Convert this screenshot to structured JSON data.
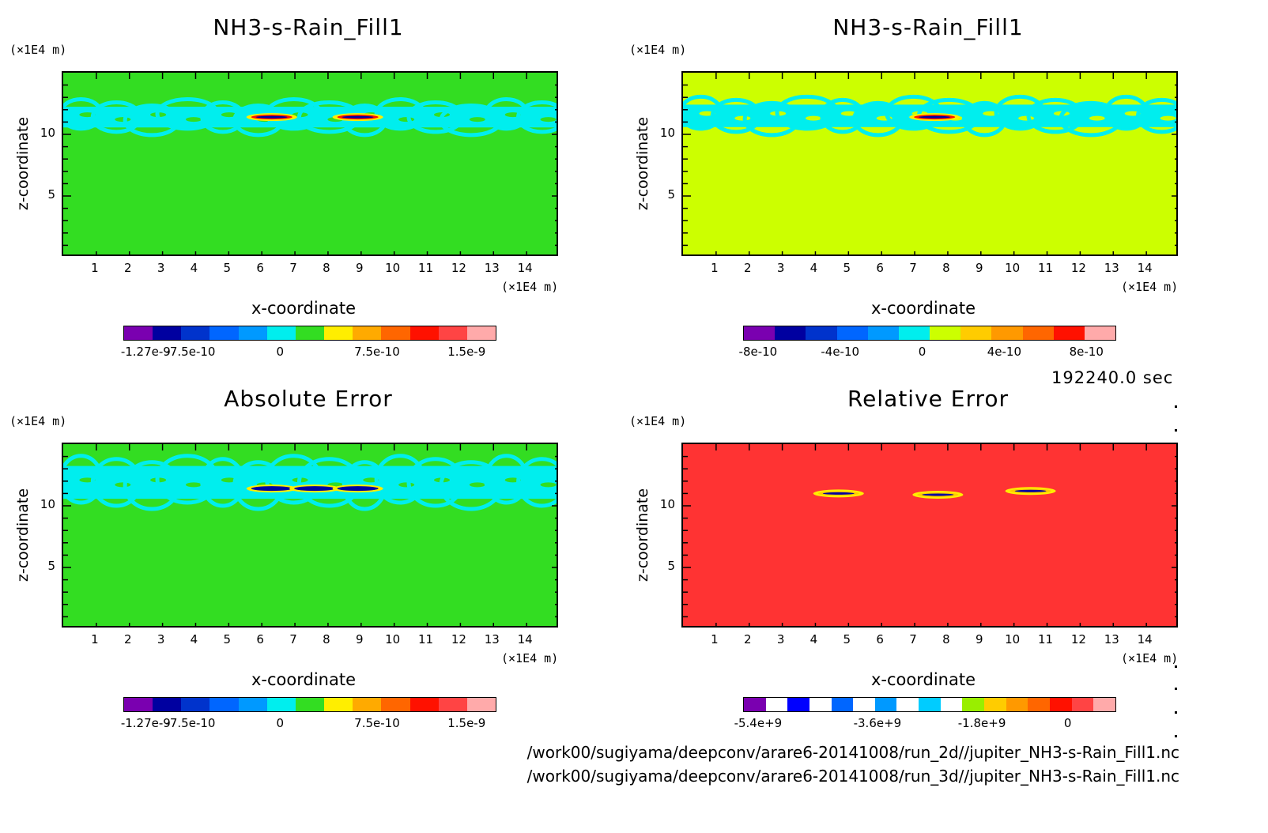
{
  "time_label": "192240.0 sec",
  "file_paths": [
    "/work00/sugiyama/deepconv/arare6-20141008/run_2d//jupiter_NH3-s-Rain_Fill1.nc",
    "/work00/sugiyama/deepconv/arare6-20141008/run_3d//jupiter_NH3-s-Rain_Fill1.nc"
  ],
  "axis_unit": "(×1E4 m)",
  "xlabel": "x-coordinate",
  "ylabel": "z-coordinate",
  "x_ticks": [
    "1",
    "2",
    "3",
    "4",
    "5",
    "6",
    "7",
    "8",
    "9",
    "10",
    "11",
    "12",
    "13",
    "14"
  ],
  "y_ticks": [
    "10",
    "5"
  ],
  "chart_data": [
    {
      "type": "heatmap",
      "title": "NH3-s-Rain_Fill1",
      "xlabel": "x-coordinate",
      "ylabel": "z-coordinate",
      "xlim": [
        0,
        15
      ],
      "ylim": [
        0,
        15
      ],
      "background": "#33dd22",
      "colorbar_colors": [
        "#7a00b0",
        "#0000a0",
        "#0033cc",
        "#0066ff",
        "#0099ff",
        "#00eeee",
        "#33dd22",
        "#ffee00",
        "#ffaa00",
        "#ff6600",
        "#ff1100",
        "#ff4444",
        "#ffaaaa"
      ],
      "colorbar_labels": [
        "-1.27e-9",
        "-7.5e-10",
        "0",
        "7.5e-10",
        "1.5e-9"
      ],
      "features": [
        {
          "type": "band",
          "zmin": 10.2,
          "zmax": 12.6,
          "color": "#00eeee"
        },
        {
          "type": "blob",
          "x": 6.3,
          "z": 11.4,
          "color": "#ff1100"
        },
        {
          "type": "blob",
          "x": 8.9,
          "z": 11.4,
          "color": "#ff1100"
        }
      ]
    },
    {
      "type": "heatmap",
      "title": "NH3-s-Rain_Fill1",
      "xlabel": "x-coordinate",
      "ylabel": "z-coordinate",
      "xlim": [
        0,
        15
      ],
      "ylim": [
        0,
        15
      ],
      "background": "#ccff00",
      "colorbar_colors": [
        "#7a00b0",
        "#0000a0",
        "#0033cc",
        "#0066ff",
        "#0099ff",
        "#00eeee",
        "#ccff00",
        "#ffcc00",
        "#ff9900",
        "#ff6600",
        "#ff1100",
        "#ffaaaa"
      ],
      "colorbar_labels": [
        "-8e-10",
        "-4e-10",
        "0",
        "4e-10",
        "8e-10"
      ],
      "features": [
        {
          "type": "band",
          "zmin": 10.2,
          "zmax": 12.8,
          "color": "#00eeee"
        },
        {
          "type": "blob",
          "x": 7.6,
          "z": 11.4,
          "color": "#ff1100"
        }
      ]
    },
    {
      "type": "heatmap",
      "title": "Absolute Error",
      "xlabel": "x-coordinate",
      "ylabel": "z-coordinate",
      "xlim": [
        0,
        15
      ],
      "ylim": [
        0,
        15
      ],
      "background": "#33dd22",
      "colorbar_colors": [
        "#7a00b0",
        "#0000a0",
        "#0033cc",
        "#0066ff",
        "#0099ff",
        "#00eeee",
        "#33dd22",
        "#ffee00",
        "#ffaa00",
        "#ff6600",
        "#ff1100",
        "#ff4444",
        "#ffaaaa"
      ],
      "colorbar_labels": [
        "-1.27e-9",
        "-7.5e-10",
        "0",
        "7.5e-10",
        "1.5e-9"
      ],
      "features": [
        {
          "type": "band",
          "zmin": 10.0,
          "zmax": 13.8,
          "color": "#00eeee"
        },
        {
          "type": "blob",
          "x": 6.3,
          "z": 11.4,
          "color": "#0000a0"
        },
        {
          "type": "blob",
          "x": 7.6,
          "z": 11.4,
          "color": "#0000a0"
        },
        {
          "type": "blob",
          "x": 8.9,
          "z": 11.4,
          "color": "#0000a0"
        }
      ]
    },
    {
      "type": "heatmap",
      "title": "Relative Error",
      "xlabel": "x-coordinate",
      "ylabel": "z-coordinate",
      "xlim": [
        0,
        15
      ],
      "ylim": [
        0,
        15
      ],
      "background": "#ff3333",
      "colorbar_colors": [
        "#7a00b0",
        "#ffffff",
        "#0000ff",
        "#ffffff",
        "#0066ff",
        "#ffffff",
        "#0099ff",
        "#ffffff",
        "#00ccff",
        "#ffffff",
        "#99ee00",
        "#ffcc00",
        "#ff9900",
        "#ff6600",
        "#ff1100",
        "#ff4444",
        "#ffaaaa"
      ],
      "colorbar_labels": [
        "-5.4e+9",
        "-3.6e+9",
        "-1.8e+9",
        "0"
      ],
      "features": [
        {
          "type": "blob",
          "x": 4.7,
          "z": 11.0,
          "color": "#ffcc00"
        },
        {
          "type": "blob",
          "x": 7.7,
          "z": 10.9,
          "color": "#ffcc00"
        },
        {
          "type": "blob",
          "x": 10.5,
          "z": 11.2,
          "color": "#ffcc00"
        }
      ]
    }
  ]
}
